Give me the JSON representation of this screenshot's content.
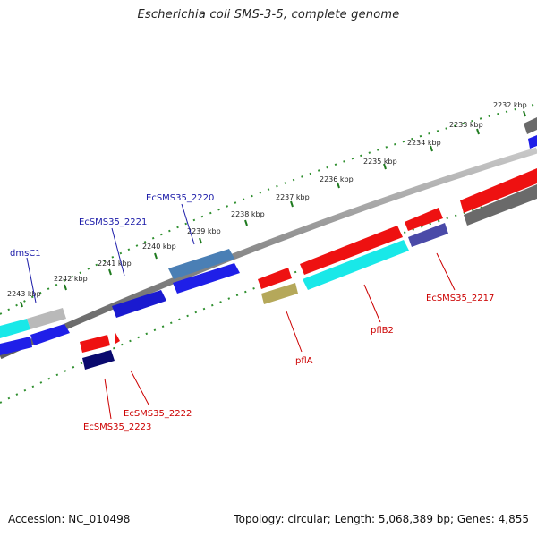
{
  "title": "Escherichia coli SMS-3-5, complete genome",
  "footer": {
    "accession": "Accession: NC_010498",
    "summary": "Topology: circular; Length: 5,068,389 bp; Genes: 4,855"
  },
  "colors": {
    "forward_cds": "#1f1fe8",
    "reverse_cds": "#ee1111",
    "gene_label_forward": "#1a1aa8",
    "gene_label_reverse": "#cc0000",
    "backbone": "#8a8a8a",
    "tick_dots": "#2f8f2f"
  },
  "ticks": [
    {
      "label": "2232 kbp"
    },
    {
      "label": "2233 kbp"
    },
    {
      "label": "2234 kbp"
    },
    {
      "label": "2235 kbp"
    },
    {
      "label": "2236 kbp"
    },
    {
      "label": "2237 kbp"
    },
    {
      "label": "2238 kbp"
    },
    {
      "label": "2239 kbp"
    },
    {
      "label": "2240 kbp"
    },
    {
      "label": "2241 kbp"
    },
    {
      "label": "2242 kbp"
    },
    {
      "label": "2243 kbp"
    }
  ],
  "gene_labels": {
    "forward": [
      "dmsC1",
      "EcSMS35_2221",
      "EcSMS35_2220"
    ],
    "reverse": [
      "EcSMS35_2223",
      "EcSMS35_2222",
      "pflA",
      "pflB2",
      "EcSMS35_2217"
    ]
  }
}
